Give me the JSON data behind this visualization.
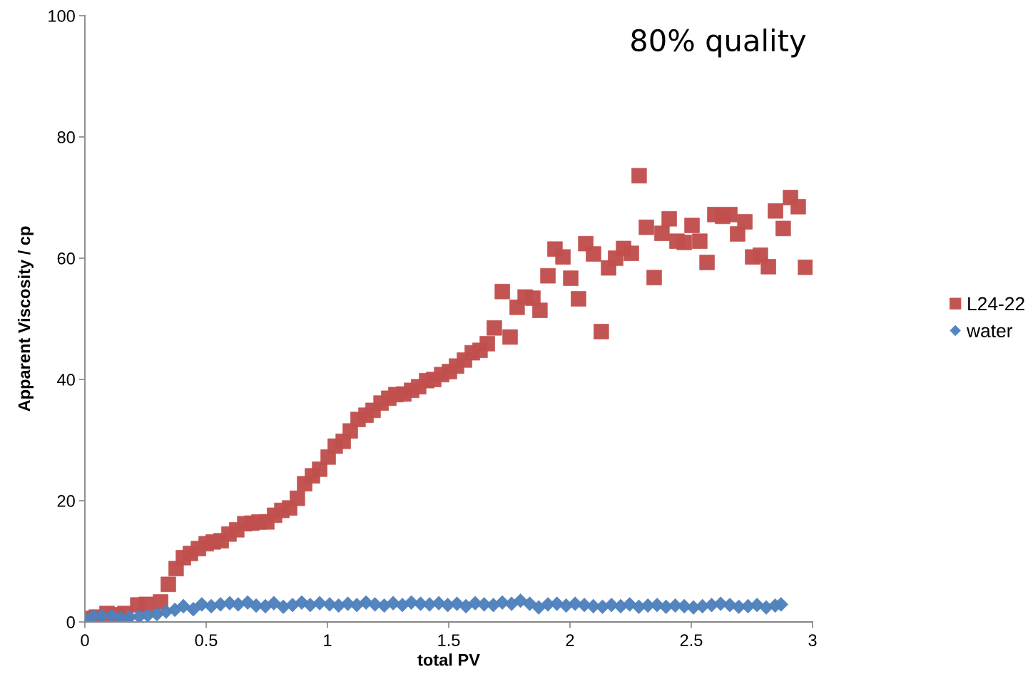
{
  "chart_data": {
    "type": "scatter",
    "title": "80% quality",
    "xlabel": "total PV",
    "ylabel": "Apparent Viscosity / cp",
    "xlim": [
      0,
      3
    ],
    "xticks": [
      0,
      0.5,
      1,
      1.5,
      2,
      2.5,
      3
    ],
    "ylim": [
      0,
      100
    ],
    "yticks": [
      0,
      20,
      40,
      60,
      80,
      100
    ],
    "grid": false,
    "legend": "right",
    "series": [
      {
        "name": "L24-22",
        "color": "#c0504d",
        "marker": "square",
        "x": [
          0.0,
          0.047,
          0.091,
          0.129,
          0.165,
          0.218,
          0.253,
          0.312,
          0.344,
          0.376,
          0.406,
          0.435,
          0.468,
          0.5,
          0.529,
          0.562,
          0.594,
          0.626,
          0.659,
          0.688,
          0.718,
          0.75,
          0.782,
          0.812,
          0.844,
          0.876,
          0.906,
          0.938,
          0.968,
          1.003,
          1.032,
          1.065,
          1.094,
          1.126,
          1.159,
          1.188,
          1.221,
          1.253,
          1.282,
          1.315,
          1.347,
          1.376,
          1.409,
          1.438,
          1.471,
          1.503,
          1.532,
          1.565,
          1.597,
          1.629,
          1.659,
          1.688,
          1.721,
          1.753,
          1.782,
          1.815,
          1.847,
          1.876,
          1.909,
          1.938,
          1.971,
          2.003,
          2.035,
          2.065,
          2.097,
          2.129,
          2.159,
          2.188,
          2.221,
          2.253,
          2.285,
          2.315,
          2.347,
          2.379,
          2.409,
          2.441,
          2.471,
          2.503,
          2.535,
          2.565,
          2.597,
          2.629,
          2.659,
          2.691,
          2.721,
          2.753,
          2.785,
          2.818,
          2.847,
          2.879,
          2.909,
          2.941,
          2.971
        ],
        "values": [
          0.6,
          0.8,
          1.4,
          1.2,
          1.4,
          2.8,
          2.9,
          3.3,
          6.2,
          8.8,
          10.6,
          11.3,
          12.1,
          12.9,
          13.2,
          13.4,
          14.5,
          15.2,
          16.2,
          16.3,
          16.5,
          16.5,
          17.6,
          18.4,
          18.8,
          20.4,
          22.8,
          24.1,
          25.2,
          27.2,
          29.0,
          29.8,
          31.5,
          33.4,
          34.1,
          34.9,
          36.1,
          36.9,
          37.5,
          37.6,
          38.2,
          38.8,
          39.8,
          40.0,
          40.8,
          41.3,
          42.2,
          43.2,
          44.4,
          44.8,
          45.9,
          48.5,
          54.5,
          47.0,
          51.9,
          53.6,
          53.4,
          51.4,
          57.1,
          61.5,
          60.2,
          56.7,
          53.3,
          62.4,
          60.7,
          47.9,
          58.4,
          60.0,
          61.6,
          60.8,
          73.6,
          65.1,
          56.8,
          64.1,
          66.5,
          62.8,
          62.6,
          65.4,
          62.8,
          59.3,
          67.2,
          66.9,
          67.2,
          64.0,
          66.0,
          60.2,
          60.5,
          58.6,
          67.8,
          64.9,
          70.0,
          68.5,
          58.5
        ]
      },
      {
        "name": "water",
        "color": "#4f81bd",
        "marker": "diamond",
        "x": [
          0.0,
          0.035,
          0.07,
          0.11,
          0.147,
          0.185,
          0.224,
          0.259,
          0.297,
          0.335,
          0.371,
          0.406,
          0.447,
          0.482,
          0.521,
          0.559,
          0.597,
          0.632,
          0.671,
          0.706,
          0.744,
          0.779,
          0.818,
          0.856,
          0.894,
          0.929,
          0.968,
          1.009,
          1.046,
          1.084,
          1.121,
          1.159,
          1.196,
          1.234,
          1.271,
          1.309,
          1.346,
          1.384,
          1.421,
          1.459,
          1.496,
          1.534,
          1.571,
          1.609,
          1.646,
          1.684,
          1.721,
          1.759,
          1.796,
          1.834,
          1.871,
          1.909,
          1.946,
          1.984,
          2.021,
          2.059,
          2.096,
          2.134,
          2.171,
          2.209,
          2.246,
          2.284,
          2.321,
          2.359,
          2.396,
          2.434,
          2.471,
          2.509,
          2.546,
          2.584,
          2.621,
          2.659,
          2.696,
          2.734,
          2.771,
          2.809,
          2.846,
          2.87
        ],
        "values": [
          0.5,
          0.9,
          1.0,
          1.0,
          0.7,
          0.8,
          0.9,
          1.1,
          1.3,
          1.7,
          2.0,
          2.6,
          2.1,
          2.9,
          2.6,
          2.9,
          3.1,
          2.9,
          3.2,
          2.7,
          2.6,
          3.1,
          2.5,
          2.8,
          3.2,
          2.8,
          3.1,
          2.9,
          2.7,
          3.0,
          2.8,
          3.2,
          2.9,
          2.7,
          3.1,
          2.8,
          3.2,
          3.0,
          2.9,
          3.1,
          2.8,
          3.0,
          2.6,
          3.1,
          2.9,
          2.8,
          3.2,
          3.0,
          3.5,
          3.0,
          2.4,
          2.9,
          3.0,
          2.7,
          3.0,
          2.8,
          2.6,
          2.5,
          2.8,
          2.6,
          2.9,
          2.5,
          2.7,
          2.8,
          2.5,
          2.7,
          2.6,
          2.4,
          2.6,
          2.8,
          3.0,
          2.8,
          2.5,
          2.6,
          2.8,
          2.4,
          2.7,
          2.9
        ]
      }
    ]
  }
}
